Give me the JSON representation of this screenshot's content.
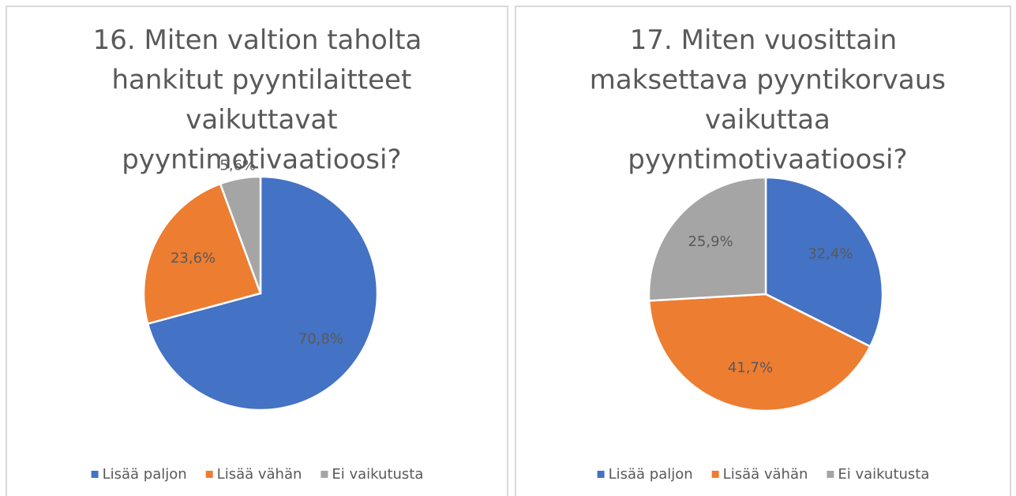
{
  "chart_data": [
    {
      "type": "pie",
      "title": "16. Miten valtion taholta hankitut pyyntilaitteet vaikuttavat pyyntimotivaatioosi?",
      "categories": [
        "Lisää paljon",
        "Lisää vähän",
        "Ei vaikutusta"
      ],
      "values": [
        70.8,
        23.6,
        5.6
      ],
      "value_labels": [
        "70,8%",
        "23,6%",
        "5,6%"
      ],
      "colors": [
        "#4472c4",
        "#ed7d31",
        "#a5a5a5"
      ],
      "legend": "bottom"
    },
    {
      "type": "pie",
      "title": "17. Miten vuosittain maksettava pyyntikorvaus vaikuttaa pyyntimotivaatioosi?",
      "categories": [
        "Lisää paljon",
        "Lisää vähän",
        "Ei vaikutusta"
      ],
      "values": [
        32.4,
        41.7,
        25.9
      ],
      "value_labels": [
        "32,4%",
        "41,7%",
        "25,9%"
      ],
      "colors": [
        "#4472c4",
        "#ed7d31",
        "#a5a5a5"
      ],
      "legend": "bottom"
    }
  ]
}
